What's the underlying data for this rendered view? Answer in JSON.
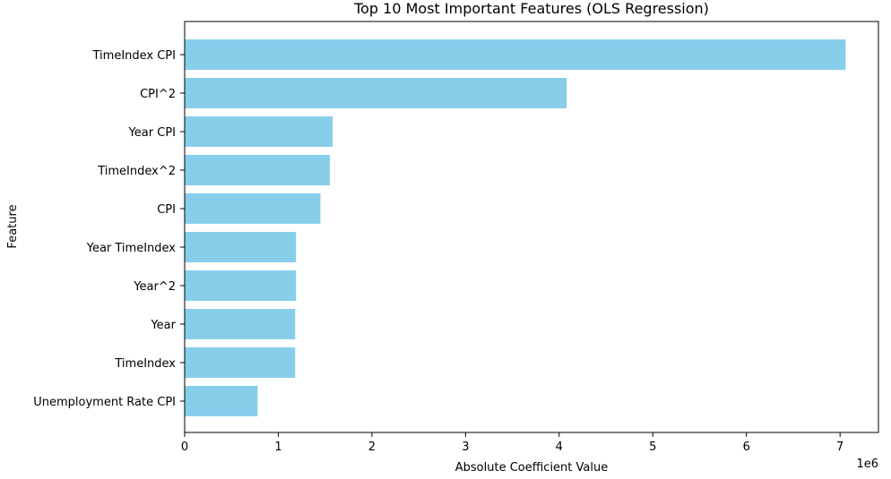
{
  "chart_data": {
    "type": "bar",
    "orientation": "horizontal",
    "title": "Top 10 Most Important Features (OLS Regression)",
    "xlabel": "Absolute Coefficient Value",
    "ylabel": "Feature",
    "x_scale_label": "1e6",
    "categories": [
      "TimeIndex CPI",
      "CPI^2",
      "Year CPI",
      "TimeIndex^2",
      "CPI",
      "Year TimeIndex",
      "Year^2",
      "Year",
      "TimeIndex",
      "Unemployment Rate CPI"
    ],
    "values": [
      7060000,
      4080000,
      1580000,
      1550000,
      1450000,
      1190000,
      1190000,
      1180000,
      1180000,
      780000
    ],
    "x_ticks": [
      0,
      1,
      2,
      3,
      4,
      5,
      6,
      7
    ],
    "xlim": [
      0,
      7410000
    ],
    "bar_color": "#87ceeb",
    "grid": false,
    "legend": false
  }
}
